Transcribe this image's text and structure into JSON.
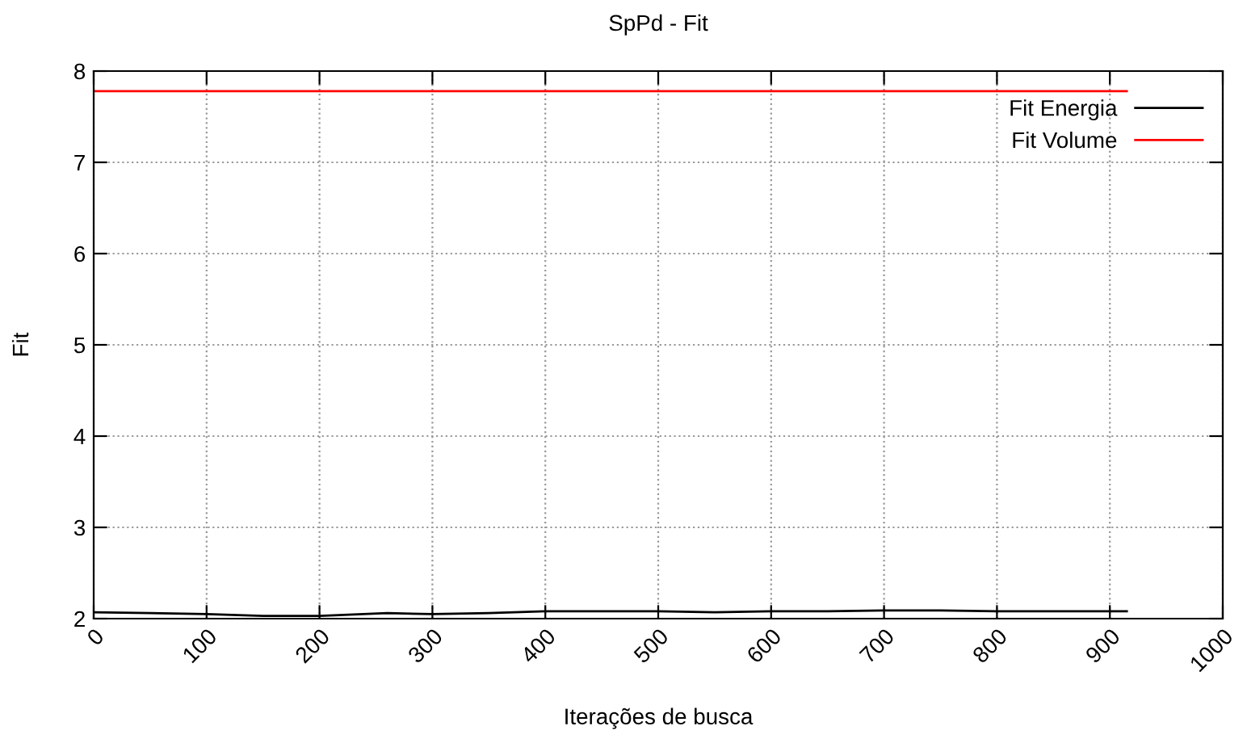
{
  "chart_data": {
    "type": "line",
    "title": "SpPd - Fit",
    "xlabel": "Iterações de busca",
    "ylabel": "Fit",
    "series": [
      {
        "name": "Fit Energia",
        "color": "#000000",
        "x": [
          0,
          50,
          100,
          150,
          200,
          260,
          300,
          350,
          400,
          450,
          500,
          550,
          600,
          650,
          700,
          750,
          800,
          850,
          915
        ],
        "values": [
          2.07,
          2.06,
          2.05,
          2.03,
          2.03,
          2.06,
          2.05,
          2.06,
          2.08,
          2.08,
          2.08,
          2.07,
          2.08,
          2.08,
          2.09,
          2.09,
          2.08,
          2.08,
          2.08
        ]
      },
      {
        "name": "Fit Volume",
        "color": "#ff0000",
        "x": [
          0,
          915
        ],
        "values": [
          7.78,
          7.78
        ]
      }
    ],
    "xlim": [
      0,
      1000
    ],
    "xticks": [
      0,
      100,
      200,
      300,
      400,
      500,
      600,
      700,
      800,
      900,
      1000
    ],
    "ylim": [
      2,
      8
    ],
    "yticks": [
      2,
      3,
      4,
      5,
      6,
      7,
      8
    ],
    "grid": true,
    "legend": "top right",
    "line_style": "solid",
    "marker": "none"
  }
}
